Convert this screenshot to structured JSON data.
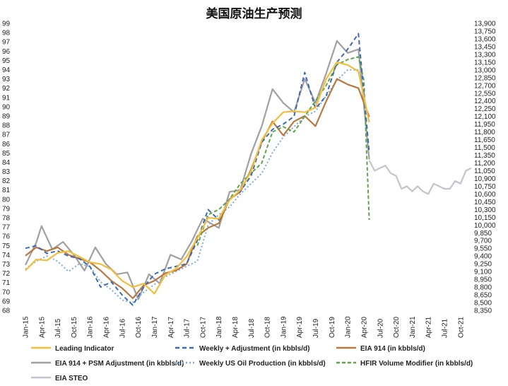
{
  "title": "美国原油生产预测",
  "chart_data": {
    "type": "line",
    "title": "美国原油生产预测",
    "x_ticks": [
      "Jan-15",
      "Apr-15",
      "Jul-15",
      "Oct-15",
      "Jan-16",
      "Apr-16",
      "Jul-16",
      "Oct-16",
      "Jan-17",
      "Apr-17",
      "Jul-17",
      "Oct-17",
      "Jan-18",
      "Apr-18",
      "Jul-18",
      "Oct-18",
      "Jan-19",
      "Apr-19",
      "Jul-19",
      "Oct-19",
      "Jan-20",
      "Apr-20",
      "Jul-20",
      "Oct-20",
      "Jan-21",
      "Apr-21",
      "Jul-21",
      "Oct-21"
    ],
    "x_months": [
      "2015-01",
      "2015-04",
      "2015-07",
      "2015-10",
      "2016-01",
      "2016-04",
      "2016-07",
      "2016-10",
      "2017-01",
      "2017-04",
      "2017-07",
      "2017-10",
      "2018-01",
      "2018-04",
      "2018-07",
      "2018-10",
      "2019-01",
      "2019-04",
      "2019-07",
      "2019-10",
      "2020-01",
      "2020-04",
      "2020-07",
      "2020-10",
      "2021-01",
      "2021-04",
      "2021-07",
      "2021-10"
    ],
    "x_range": [
      "2015-01",
      "2021-12"
    ],
    "y_left_ticks": [
      68,
      69,
      70,
      71,
      72,
      73,
      74,
      75,
      76,
      77,
      78,
      79,
      80,
      81,
      82,
      83,
      84,
      85,
      86,
      87,
      88,
      89,
      90,
      91,
      92,
      93,
      94,
      95,
      96,
      97,
      98,
      99
    ],
    "y_left_range": [
      68,
      99
    ],
    "y_right_ticks": [
      "8,350",
      "8,500",
      "8,650",
      "8,800",
      "8,950",
      "9,100",
      "9,250",
      "9,400",
      "9,550",
      "9,700",
      "9,850",
      "10,000",
      "10,150",
      "10,300",
      "10,450",
      "10,600",
      "10,750",
      "10,900",
      "11,050",
      "11,200",
      "11,350",
      "11,500",
      "11,650",
      "11,800",
      "11,950",
      "12,100",
      "12,250",
      "12,400",
      "12,550",
      "12,700",
      "12,850",
      "13,000",
      "13,150",
      "13,300",
      "13,450",
      "13,600",
      "13,750",
      "13,900"
    ],
    "y_right_range": [
      8350,
      13900
    ],
    "grid": false,
    "legend_position": "bottom",
    "series": [
      {
        "name": "Leading Indicator",
        "axis": "left",
        "color": "#F2BE3C",
        "dash": "solid",
        "points": [
          [
            "2015-01",
            72.3
          ],
          [
            "2015-03",
            73.5
          ],
          [
            "2015-05",
            73.4
          ],
          [
            "2015-07",
            74.2
          ],
          [
            "2015-09",
            74.4
          ],
          [
            "2015-11",
            73.8
          ],
          [
            "2016-01",
            73.2
          ],
          [
            "2016-03",
            73.0
          ],
          [
            "2016-05",
            72.4
          ],
          [
            "2016-07",
            71.2
          ],
          [
            "2016-09",
            70.5
          ],
          [
            "2016-11",
            70.9
          ],
          [
            "2017-01",
            69.8
          ],
          [
            "2017-03",
            71.8
          ],
          [
            "2017-05",
            72.5
          ],
          [
            "2017-07",
            73.8
          ],
          [
            "2017-09",
            75.8
          ],
          [
            "2017-11",
            78.0
          ],
          [
            "2018-01",
            77.9
          ],
          [
            "2018-03",
            79.9
          ],
          [
            "2018-05",
            81.0
          ],
          [
            "2018-07",
            83.0
          ],
          [
            "2018-09",
            86.4
          ],
          [
            "2018-11",
            88.2
          ],
          [
            "2019-01",
            89.4
          ],
          [
            "2019-03",
            89.5
          ],
          [
            "2019-05",
            89.4
          ],
          [
            "2019-07",
            89.9
          ],
          [
            "2019-09",
            93.0
          ],
          [
            "2019-11",
            94.8
          ],
          [
            "2020-01",
            94.5
          ],
          [
            "2020-03",
            93.8
          ],
          [
            "2020-05",
            88.3
          ]
        ]
      },
      {
        "name": "Weekly + Adjustment (in kbbls/d)",
        "axis": "right",
        "color": "#3D6AB5",
        "dash": "6,4",
        "points": [
          [
            "2015-01",
            9550
          ],
          [
            "2015-03",
            9600
          ],
          [
            "2015-05",
            9450
          ],
          [
            "2015-07",
            9500
          ],
          [
            "2015-09",
            9400
          ],
          [
            "2015-11",
            9350
          ],
          [
            "2016-01",
            9200
          ],
          [
            "2016-03",
            8800
          ],
          [
            "2016-05",
            8900
          ],
          [
            "2016-07",
            8650
          ],
          [
            "2016-09",
            8450
          ],
          [
            "2016-11",
            8800
          ],
          [
            "2017-01",
            9050
          ],
          [
            "2017-03",
            9150
          ],
          [
            "2017-05",
            9200
          ],
          [
            "2017-07",
            9250
          ],
          [
            "2017-09",
            9700
          ],
          [
            "2017-11",
            10300
          ],
          [
            "2018-01",
            10100
          ],
          [
            "2018-03",
            10500
          ],
          [
            "2018-05",
            10650
          ],
          [
            "2018-07",
            10950
          ],
          [
            "2018-09",
            11600
          ],
          [
            "2018-11",
            11850
          ],
          [
            "2019-01",
            11950
          ],
          [
            "2019-03",
            12100
          ],
          [
            "2019-05",
            12950
          ],
          [
            "2019-07",
            12250
          ],
          [
            "2019-09",
            12500
          ],
          [
            "2019-11",
            13150
          ],
          [
            "2020-01",
            13400
          ],
          [
            "2020-03",
            13700
          ],
          [
            "2020-05",
            11400
          ]
        ]
      },
      {
        "name": "EIA 914 (in kbbls/d)",
        "axis": "left",
        "color": "#B87840",
        "dash": "solid",
        "points": [
          [
            "2015-01",
            73.9
          ],
          [
            "2015-03",
            74.8
          ],
          [
            "2015-05",
            74.4
          ],
          [
            "2015-07",
            74.8
          ],
          [
            "2015-09",
            74.0
          ],
          [
            "2015-11",
            73.6
          ],
          [
            "2016-01",
            73.2
          ],
          [
            "2016-03",
            72.3
          ],
          [
            "2016-05",
            71.2
          ],
          [
            "2016-07",
            70.4
          ],
          [
            "2016-09",
            69.3
          ],
          [
            "2016-11",
            70.7
          ],
          [
            "2017-01",
            71.2
          ],
          [
            "2017-03",
            72.0
          ],
          [
            "2017-05",
            72.3
          ],
          [
            "2017-07",
            73.0
          ],
          [
            "2017-09",
            76.0
          ],
          [
            "2017-11",
            76.9
          ],
          [
            "2018-01",
            77.4
          ],
          [
            "2018-03",
            80.0
          ],
          [
            "2018-05",
            80.8
          ],
          [
            "2018-07",
            83.2
          ],
          [
            "2018-09",
            86.2
          ],
          [
            "2018-11",
            88.4
          ],
          [
            "2019-01",
            86.9
          ],
          [
            "2019-03",
            88.4
          ],
          [
            "2019-05",
            89.0
          ],
          [
            "2019-07",
            87.9
          ],
          [
            "2019-09",
            90.6
          ],
          [
            "2019-11",
            93.0
          ],
          [
            "2020-01",
            92.4
          ],
          [
            "2020-03",
            92.0
          ],
          [
            "2020-05",
            88.9
          ]
        ]
      },
      {
        "name": "EIA 914 + PSM Adjustment (in kbbls/d)",
        "axis": "left",
        "color": "#A0A0A0",
        "dash": "solid",
        "points": [
          [
            "2015-01",
            72.9
          ],
          [
            "2015-03",
            75.3
          ],
          [
            "2015-04",
            77.1
          ],
          [
            "2015-06",
            74.6
          ],
          [
            "2015-08",
            75.4
          ],
          [
            "2015-10",
            74.0
          ],
          [
            "2015-12",
            72.3
          ],
          [
            "2016-02",
            74.8
          ],
          [
            "2016-04",
            73.0
          ],
          [
            "2016-06",
            71.9
          ],
          [
            "2016-08",
            72.1
          ],
          [
            "2016-10",
            69.2
          ],
          [
            "2016-12",
            71.9
          ],
          [
            "2017-02",
            70.9
          ],
          [
            "2017-04",
            74.0
          ],
          [
            "2017-06",
            73.5
          ],
          [
            "2017-08",
            75.5
          ],
          [
            "2017-10",
            77.9
          ],
          [
            "2018-01",
            76.9
          ],
          [
            "2018-03",
            80.8
          ],
          [
            "2018-05",
            81.0
          ],
          [
            "2018-07",
            84.9
          ],
          [
            "2018-09",
            87.9
          ],
          [
            "2018-11",
            91.9
          ],
          [
            "2019-01",
            90.4
          ],
          [
            "2019-03",
            89.4
          ],
          [
            "2019-05",
            93.0
          ],
          [
            "2019-07",
            90.4
          ],
          [
            "2019-09",
            93.6
          ],
          [
            "2019-11",
            97.1
          ],
          [
            "2020-01",
            95.8
          ],
          [
            "2020-03",
            96.2
          ],
          [
            "2020-05",
            84.3
          ]
        ]
      },
      {
        "name": "Weekly US Oil Production (in kbbls/d)",
        "axis": "right",
        "color": "#7FA9D9",
        "dash": "2,3",
        "points": [
          [
            "2015-01",
            9150
          ],
          [
            "2015-03",
            9300
          ],
          [
            "2015-05",
            9400
          ],
          [
            "2015-07",
            9300
          ],
          [
            "2015-09",
            9100
          ],
          [
            "2015-11",
            9250
          ],
          [
            "2016-01",
            9200
          ],
          [
            "2016-03",
            8900
          ],
          [
            "2016-05",
            8750
          ],
          [
            "2016-07",
            8550
          ],
          [
            "2016-09",
            8500
          ],
          [
            "2016-11",
            8700
          ],
          [
            "2017-01",
            8850
          ],
          [
            "2017-03",
            9000
          ],
          [
            "2017-05",
            9100
          ],
          [
            "2017-07",
            9200
          ],
          [
            "2017-09",
            9300
          ],
          [
            "2017-11",
            10000
          ],
          [
            "2018-01",
            10200
          ],
          [
            "2018-03",
            10350
          ],
          [
            "2018-05",
            10600
          ],
          [
            "2018-07",
            10800
          ],
          [
            "2018-09",
            11000
          ],
          [
            "2018-11",
            11400
          ],
          [
            "2019-01",
            11700
          ],
          [
            "2019-03",
            11900
          ],
          [
            "2019-05",
            12100
          ],
          [
            "2019-07",
            12200
          ],
          [
            "2019-09",
            12500
          ],
          [
            "2019-11",
            12800
          ],
          [
            "2020-01",
            13000
          ],
          [
            "2020-03",
            13000
          ],
          [
            "2020-05",
            12000
          ]
        ]
      },
      {
        "name": "HFIR Volume Modifier (in kbbls/d)",
        "axis": "right",
        "color": "#5FA547",
        "dash": "5,3",
        "points": [
          [
            "2017-09",
            9600
          ],
          [
            "2017-11",
            10200
          ],
          [
            "2018-01",
            10300
          ],
          [
            "2018-03",
            10500
          ],
          [
            "2018-05",
            10800
          ],
          [
            "2018-07",
            11000
          ],
          [
            "2018-09",
            11200
          ],
          [
            "2018-11",
            11800
          ],
          [
            "2019-01",
            11900
          ],
          [
            "2019-03",
            11800
          ],
          [
            "2019-05",
            12100
          ],
          [
            "2019-07",
            12400
          ],
          [
            "2019-09",
            12700
          ],
          [
            "2019-11",
            13100
          ],
          [
            "2020-01",
            13200
          ],
          [
            "2020-03",
            13250
          ],
          [
            "2020-04",
            12800
          ],
          [
            "2020-05",
            10100
          ]
        ]
      },
      {
        "name": "EIA STEO",
        "axis": "right",
        "color": "#C4C4CC",
        "dash": "solid",
        "points": [
          [
            "2020-05",
            11250
          ],
          [
            "2020-06",
            11050
          ],
          [
            "2020-07",
            11100
          ],
          [
            "2020-08",
            11150
          ],
          [
            "2020-09",
            11000
          ],
          [
            "2020-10",
            10950
          ],
          [
            "2020-11",
            10700
          ],
          [
            "2020-12",
            10750
          ],
          [
            "2021-01",
            10650
          ],
          [
            "2021-02",
            10750
          ],
          [
            "2021-03",
            10650
          ],
          [
            "2021-04",
            10600
          ],
          [
            "2021-05",
            10800
          ],
          [
            "2021-06",
            10750
          ],
          [
            "2021-07",
            10700
          ],
          [
            "2021-08",
            10700
          ],
          [
            "2021-09",
            10850
          ],
          [
            "2021-10",
            10800
          ],
          [
            "2021-11",
            11050
          ],
          [
            "2021-12",
            11100
          ]
        ]
      }
    ]
  }
}
